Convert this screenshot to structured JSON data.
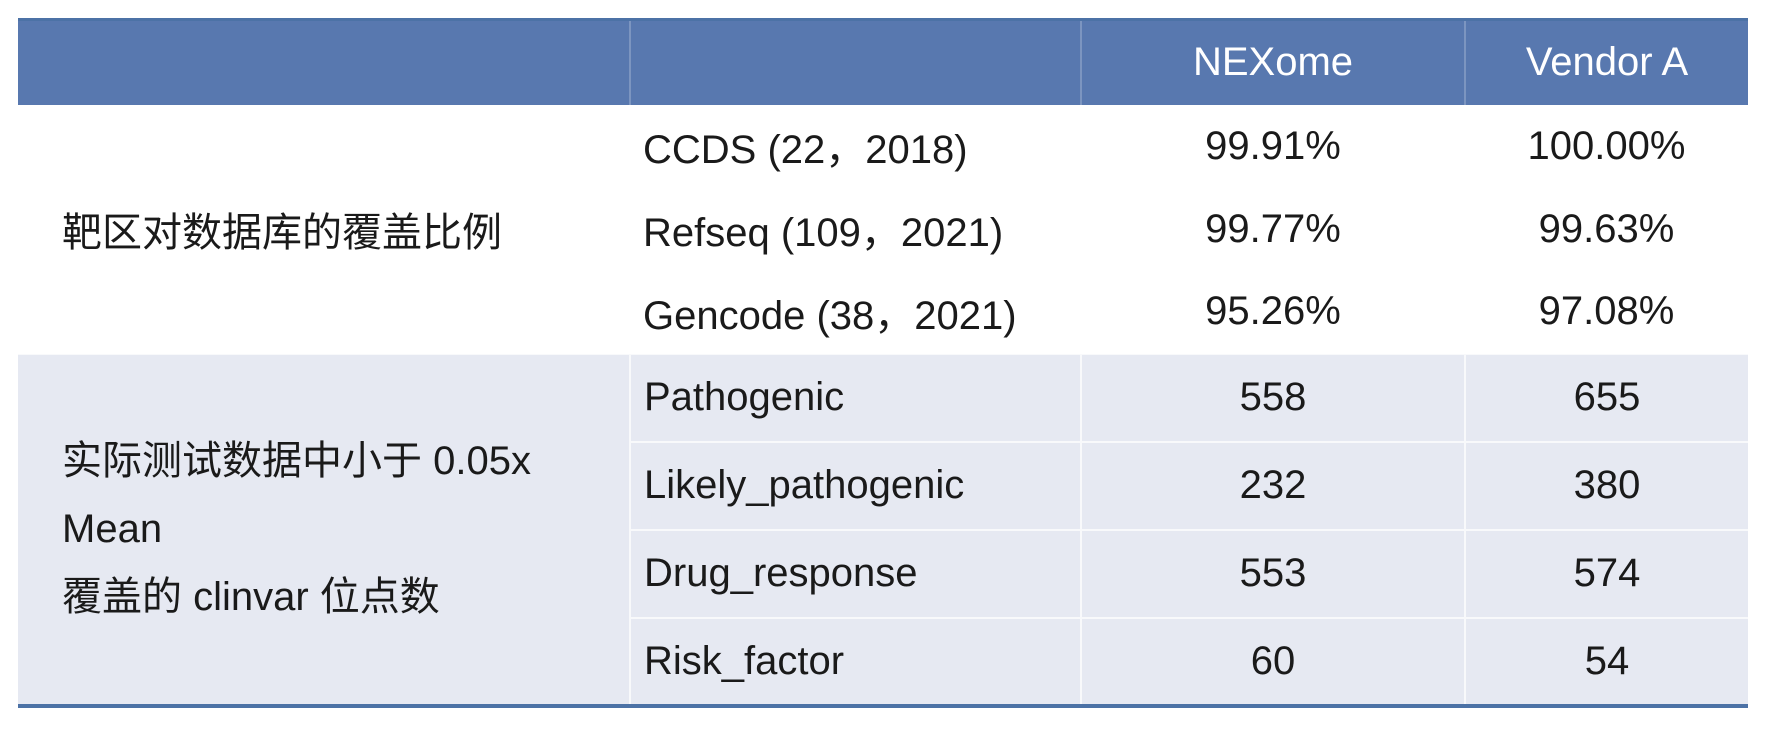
{
  "table": {
    "header": {
      "nexome": "NEXome",
      "vendor_a": "Vendor A"
    },
    "sections": [
      {
        "label": "靶区对数据库的覆盖比例",
        "rows": [
          {
            "name": "CCDS (22，2018)",
            "nexome": "99.91%",
            "vendor_a": "100.00%"
          },
          {
            "name": "Refseq (109，2021)",
            "nexome": "99.77%",
            "vendor_a": "99.63%"
          },
          {
            "name": "Gencode (38，2021)",
            "nexome": "95.26%",
            "vendor_a": "97.08%"
          }
        ]
      },
      {
        "label": "实际测试数据中小于 0.05x Mean 覆盖的 clinvar 位点数",
        "label_lines": [
          "实际测试数据中小于 0.05x Mean",
          "覆盖的 clinvar 位点数"
        ],
        "rows": [
          {
            "name": "Pathogenic",
            "nexome": "558",
            "vendor_a": "655"
          },
          {
            "name": "Likely_pathogenic",
            "nexome": "232",
            "vendor_a": "380"
          },
          {
            "name": "Drug_response",
            "nexome": "553",
            "vendor_a": "574"
          },
          {
            "name": "Risk_factor",
            "nexome": "60",
            "vendor_a": "54"
          }
        ]
      }
    ],
    "colors": {
      "header_bg": "#5878AF",
      "header_text": "#FFFFFF",
      "band_bg": "#E6E9F2",
      "rule_blue": "#4C72A6",
      "text": "#1A1A1A"
    }
  },
  "chart_data": {
    "type": "table",
    "columns": [
      "",
      "",
      "NEXome",
      "Vendor A"
    ],
    "rows": [
      [
        "靶区对数据库的覆盖比例",
        "CCDS (22，2018)",
        "99.91%",
        "100.00%"
      ],
      [
        "靶区对数据库的覆盖比例",
        "Refseq (109，2021)",
        "99.77%",
        "99.63%"
      ],
      [
        "靶区对数据库的覆盖比例",
        "Gencode (38，2021)",
        "95.26%",
        "97.08%"
      ],
      [
        "实际测试数据中小于 0.05x Mean 覆盖的 clinvar 位点数",
        "Pathogenic",
        558,
        655
      ],
      [
        "实际测试数据中小于 0.05x Mean 覆盖的 clinvar 位点数",
        "Likely_pathogenic",
        232,
        380
      ],
      [
        "实际测试数据中小于 0.05x Mean 覆盖的 clinvar 位点数",
        "Drug_response",
        553,
        574
      ],
      [
        "实际测试数据中小于 0.05x Mean 覆盖的 clinvar 位点数",
        "Risk_factor",
        60,
        54
      ]
    ]
  }
}
